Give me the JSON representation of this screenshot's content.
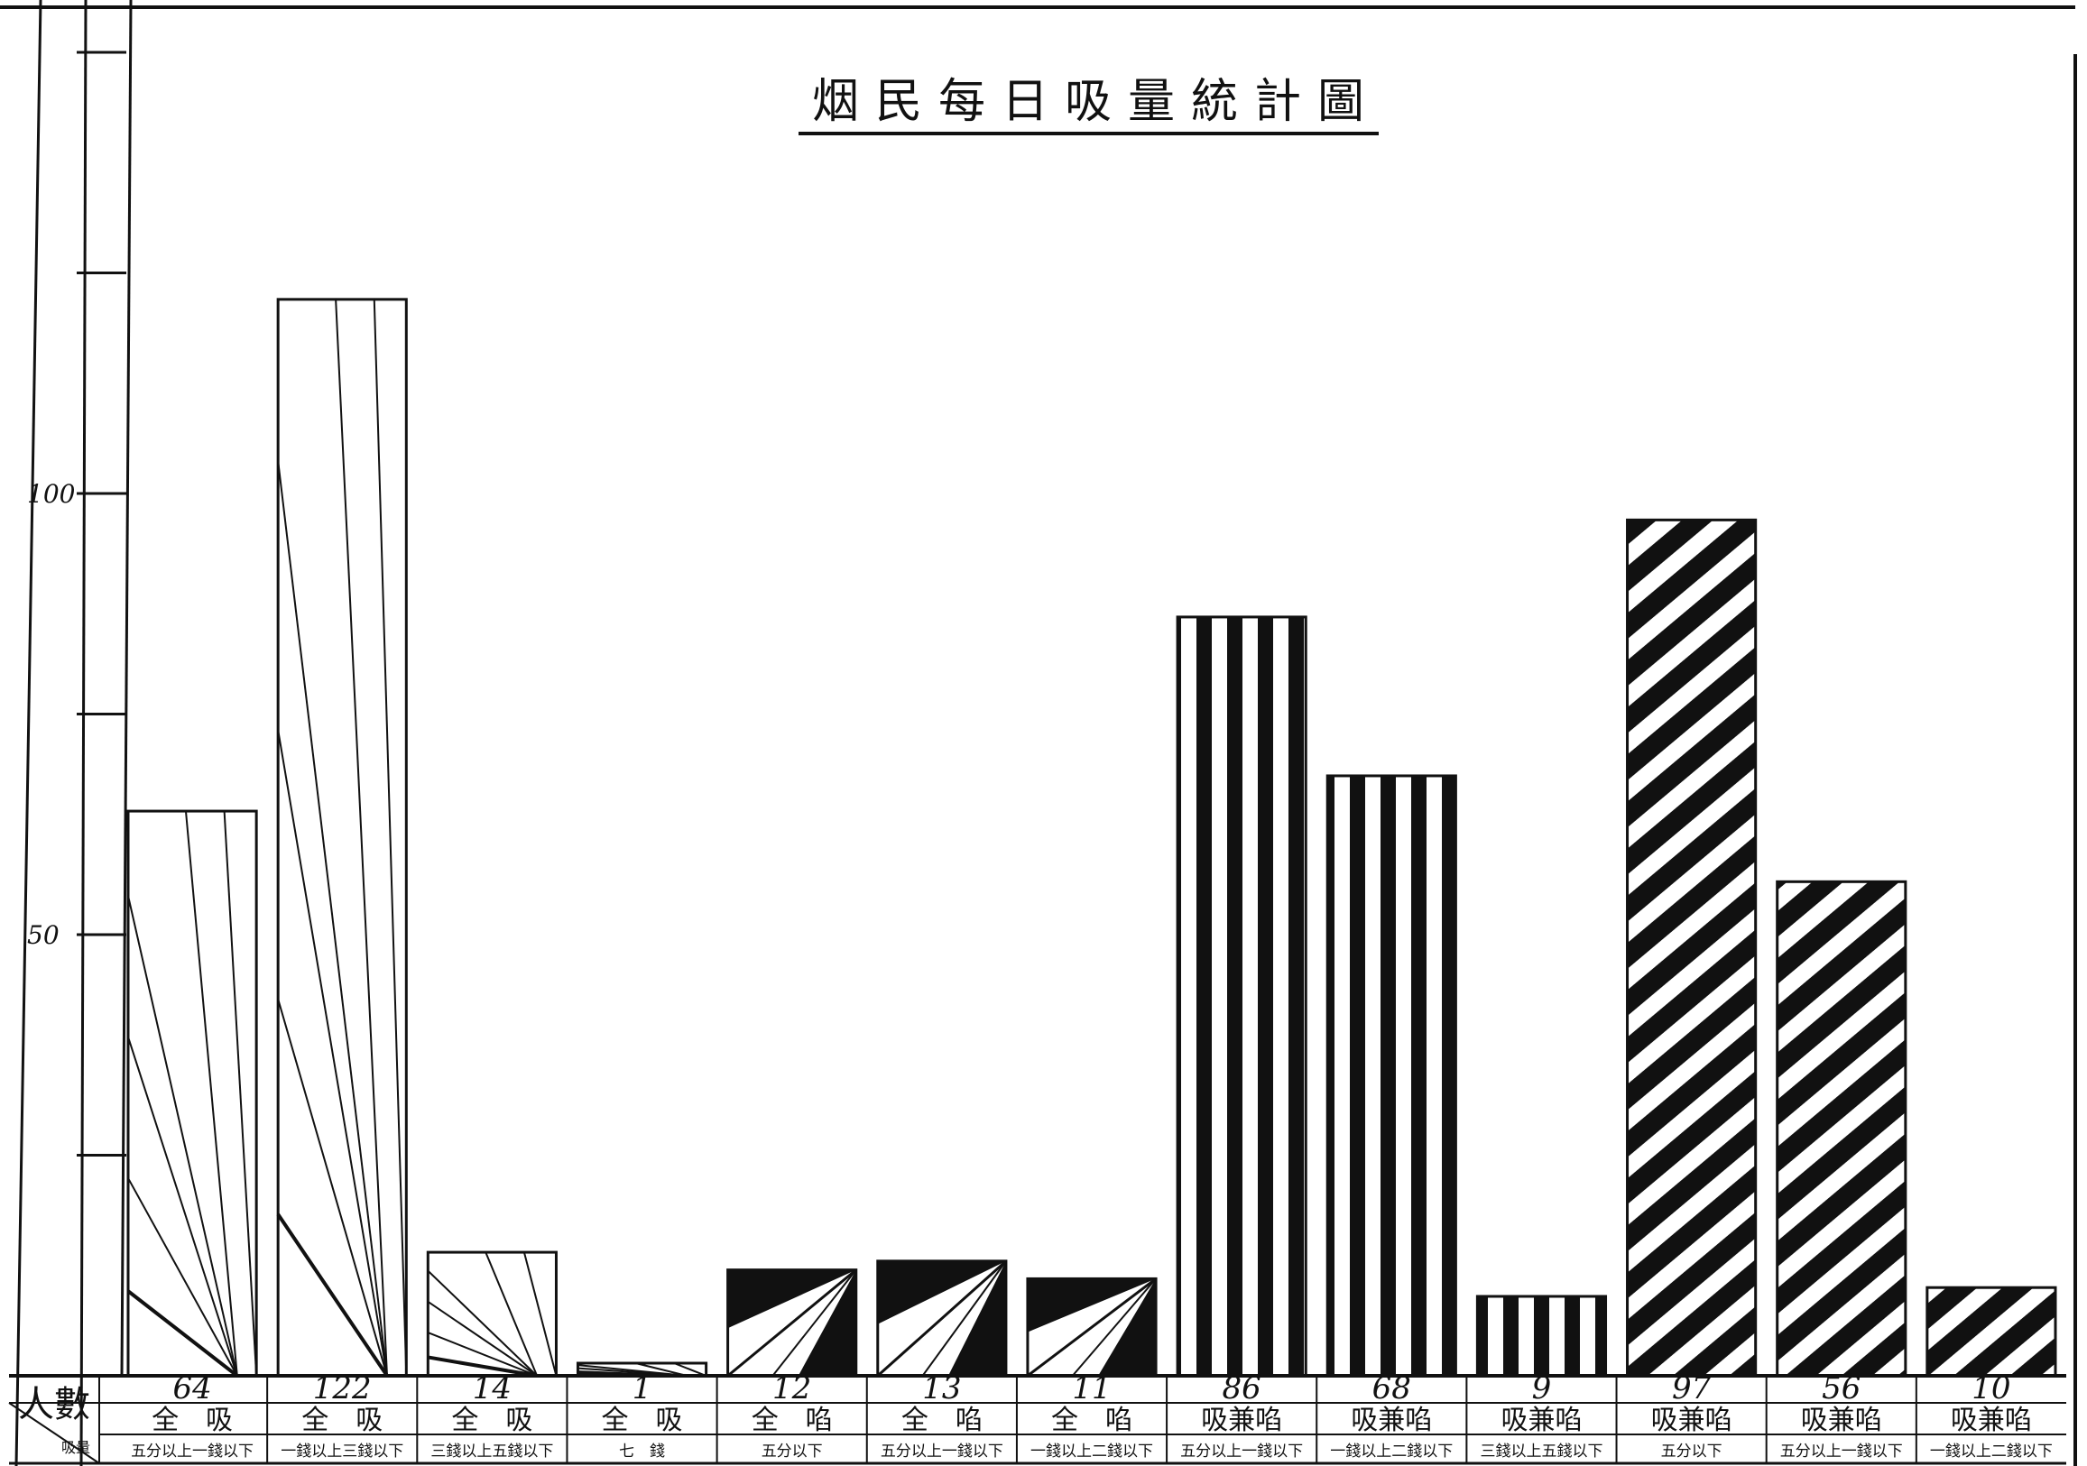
{
  "chart_data": {
    "type": "bar",
    "title": "烟民每日吸量統計圖",
    "ylabel": "人數",
    "ylim": [
      0,
      155
    ],
    "yticks": [
      50,
      100
    ],
    "grid": false,
    "legend": "none",
    "categories": [
      {
        "mode": "全　吸",
        "amount": "五分以上一錢以下"
      },
      {
        "mode": "全　吸",
        "amount": "一錢以上三錢以下"
      },
      {
        "mode": "全　吸",
        "amount": "三錢以上五錢以下"
      },
      {
        "mode": "全　吸",
        "amount": "七　錢"
      },
      {
        "mode": "全　啗",
        "amount": "五分以下"
      },
      {
        "mode": "全　啗",
        "amount": "五分以上一錢以下"
      },
      {
        "mode": "全　啗",
        "amount": "一錢以上二錢以下"
      },
      {
        "mode": "吸兼啗",
        "amount": "五分以上一錢以下"
      },
      {
        "mode": "吸兼啗",
        "amount": "一錢以上二錢以下"
      },
      {
        "mode": "吸兼啗",
        "amount": "三錢以上五錢以下"
      },
      {
        "mode": "吸兼啗",
        "amount": "五分以下"
      },
      {
        "mode": "吸兼啗",
        "amount": "五分以上一錢以下"
      },
      {
        "mode": "吸兼啗",
        "amount": "一錢以上二錢以下"
      }
    ],
    "values": [
      64,
      122,
      14,
      1,
      12,
      13,
      11,
      86,
      68,
      9,
      97,
      56,
      10
    ],
    "value_labels": [
      "64",
      "122",
      "14",
      "1",
      "12",
      "13",
      "11",
      "86",
      "68",
      "9",
      "97",
      "56",
      "10"
    ],
    "patterns": [
      "fan",
      "fan",
      "fan",
      "fan",
      "triangle",
      "triangle",
      "triangle",
      "vstripe",
      "vstripe",
      "vstripe",
      "diagonal",
      "diagonal",
      "diagonal"
    ]
  },
  "table_header": {
    "main": "人數",
    "sub": "吸量"
  },
  "colors": {
    "ink": "#111111",
    "paper": "#ffffff"
  }
}
